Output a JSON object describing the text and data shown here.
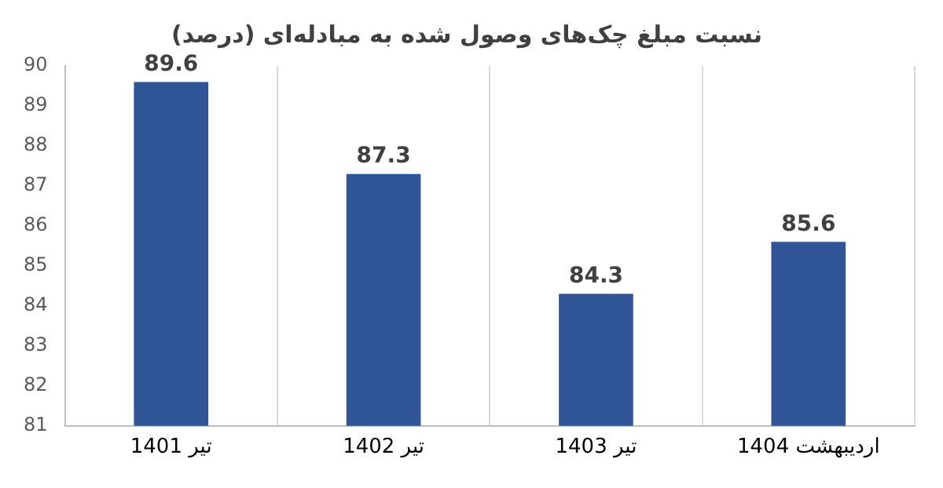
{
  "chart_data": {
    "type": "bar",
    "title": "نسبت مبلغ چک‌های وصول شده به مبادله‌ای (درصد)",
    "categories": [
      "تیر 1401",
      "تیر 1402",
      "تیر 1403",
      "اردیبهشت 1404"
    ],
    "values": [
      89.6,
      87.3,
      84.3,
      85.6
    ],
    "color": "#2f5597",
    "ylim": [
      81,
      90
    ],
    "yticks": [
      81,
      82,
      83,
      84,
      85,
      86,
      87,
      88,
      89,
      90
    ],
    "grid": "x",
    "data_labels": true,
    "legend": false
  }
}
